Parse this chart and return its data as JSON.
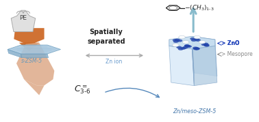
{
  "bg_color": "#ffffff",
  "fig_width": 3.78,
  "fig_height": 1.79,
  "dpi": 100,
  "pe_label_color": "#444444",
  "zsm5_label": "s-ZSM-5",
  "zsm5_label_color": "#6699bb",
  "spatially_text": "Spatially\nseparated",
  "spatially_color": "#222222",
  "spatially_fontsize": 7,
  "double_arrow_color": "#aaaaaa",
  "zn_ion_label": "Zn ion",
  "zn_ion_color": "#6699cc",
  "c36_color": "#222222",
  "zno_color": "#2244aa",
  "zno_label": "ZnO",
  "zno_label_color": "#2244bb",
  "mesopore_label": "Mesopore",
  "mesopore_color": "#888888",
  "product_color": "#222222",
  "znmeso_label": "Zn/meso-ZSM-5",
  "znmeso_color": "#4477aa",
  "up_arrow_color": "#88bbcc",
  "benzene_color": "#222222",
  "orange_dark": "#cc6622",
  "orange_light": "#ddaa88",
  "zsm5_top_color": "#a8c8e0",
  "zsm5_side_color": "#88b0cc",
  "zsm5_edge_color": "#6699bb",
  "prism_top_color": "#c8dff0",
  "prism_side_light": "#d8eaf8",
  "prism_side_dark": "#a8c8e0",
  "prism_edge_color": "#88aacc"
}
